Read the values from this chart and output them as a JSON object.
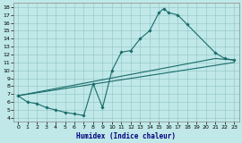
{
  "xlabel": "Humidex (Indice chaleur)",
  "bg_color": "#c0e8e8",
  "grid_color": "#90c4c4",
  "line_color": "#1a6b6b",
  "xlim": [
    -0.5,
    23.5
  ],
  "ylim": [
    3.5,
    18.5
  ],
  "xticks": [
    0,
    1,
    2,
    3,
    4,
    5,
    6,
    7,
    8,
    9,
    10,
    11,
    12,
    13,
    14,
    15,
    16,
    17,
    18,
    19,
    20,
    21,
    22,
    23
  ],
  "yticks": [
    4,
    5,
    6,
    7,
    8,
    9,
    10,
    11,
    12,
    13,
    14,
    15,
    16,
    17,
    18
  ],
  "curve_x": [
    0,
    1,
    2,
    3,
    4,
    5,
    6,
    7,
    8,
    9,
    10,
    11,
    12,
    13,
    14,
    15,
    15.5,
    16,
    17,
    18,
    21,
    22,
    23
  ],
  "curve_y": [
    6.8,
    6.0,
    5.8,
    5.3,
    5.0,
    4.7,
    4.5,
    4.3,
    8.3,
    5.3,
    10.0,
    12.3,
    12.5,
    14.0,
    15.0,
    17.3,
    17.8,
    17.3,
    17.0,
    15.8,
    12.2,
    11.5,
    11.3
  ],
  "line1_x": [
    0,
    21,
    23
  ],
  "line1_y": [
    6.8,
    11.5,
    11.3
  ],
  "line2_x": [
    0,
    23
  ],
  "line2_y": [
    6.8,
    11.0
  ]
}
